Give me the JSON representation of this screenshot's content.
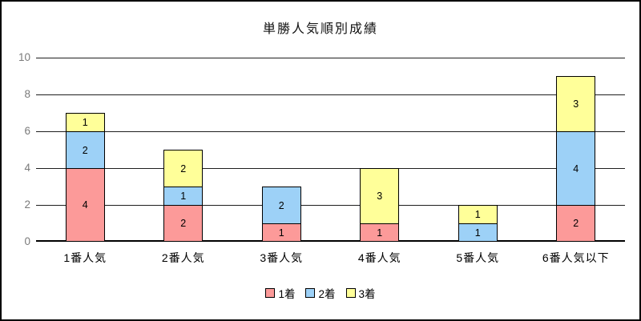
{
  "chart_data": {
    "type": "bar",
    "stacked": true,
    "title": "単勝人気順別成績",
    "categories": [
      "1番人気",
      "2番人気",
      "3番人気",
      "4番人気",
      "5番人気",
      "6番人気以下"
    ],
    "series": [
      {
        "name": "1着",
        "color": "#FC9A99",
        "values": [
          4,
          2,
          1,
          1,
          0,
          2
        ]
      },
      {
        "name": "2着",
        "color": "#9DD1F7",
        "values": [
          2,
          1,
          2,
          0,
          1,
          4
        ]
      },
      {
        "name": "3着",
        "color": "#FFFF99",
        "values": [
          1,
          2,
          0,
          3,
          1,
          3
        ]
      }
    ],
    "totals": [
      7,
      5,
      3,
      4,
      2,
      9
    ],
    "ylim": [
      0,
      10
    ],
    "yticks": [
      0,
      2,
      4,
      6,
      8,
      10
    ],
    "grid": true,
    "legend_position": "bottom",
    "segment_labels_visible": true,
    "colors": {
      "background": "#ffffff",
      "frame_border": "#000000",
      "gridline": "#1f1f1f",
      "axis_line": "#000000",
      "bar_border": "#000000",
      "ytick_text": "#7a7a7a",
      "xtick_text": "#000000",
      "title_text": "#111111"
    }
  }
}
